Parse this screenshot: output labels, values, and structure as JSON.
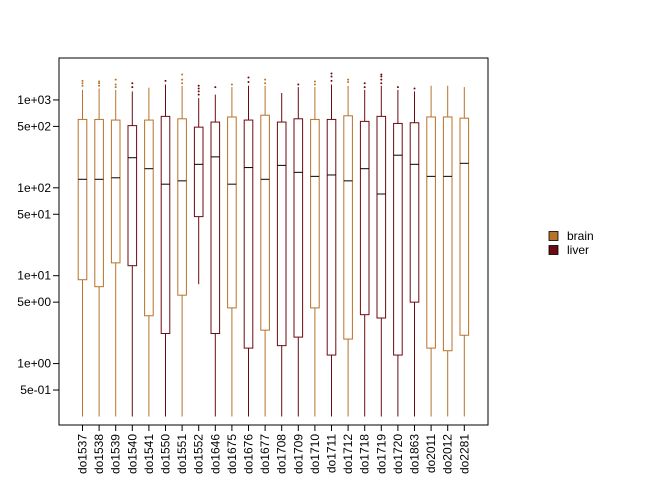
{
  "chart_data": {
    "type": "boxplot",
    "y_scale": "log10",
    "ylim": [
      0.2,
      3000
    ],
    "y_ticks": [
      {
        "value": 1000,
        "label": "1e+03"
      },
      {
        "value": 500,
        "label": "5e+02"
      },
      {
        "value": 100,
        "label": "1e+02"
      },
      {
        "value": 50,
        "label": "5e+01"
      },
      {
        "value": 10,
        "label": "1e+01"
      },
      {
        "value": 5,
        "label": "5e+00"
      },
      {
        "value": 1,
        "label": "1e+00"
      },
      {
        "value": 0.5,
        "label": "5e-01"
      }
    ],
    "legend": {
      "position": "right",
      "entries": [
        {
          "name": "brain",
          "color": "#b8722a"
        },
        {
          "name": "liver",
          "color": "#6b0a12"
        }
      ]
    },
    "boxes": [
      {
        "label": "do1537",
        "group": "brain",
        "min": 0.25,
        "q1": 9,
        "median": 125,
        "q3": 600,
        "max": 1300,
        "outliers": [
          1450,
          1550,
          1650
        ]
      },
      {
        "label": "do1538",
        "group": "brain",
        "min": 0.25,
        "q1": 7.5,
        "median": 125,
        "q3": 600,
        "max": 1350,
        "outliers": [
          1450,
          1550,
          1620
        ]
      },
      {
        "label": "do1539",
        "group": "brain",
        "min": 0.25,
        "q1": 14,
        "median": 130,
        "q3": 590,
        "max": 1300,
        "outliers": [
          1400,
          1500,
          1700
        ]
      },
      {
        "label": "do1540",
        "group": "liver",
        "min": 0.25,
        "q1": 13,
        "median": 220,
        "q3": 510,
        "max": 1250,
        "outliers": [
          1400,
          1550
        ]
      },
      {
        "label": "do1541",
        "group": "brain",
        "min": 0.25,
        "q1": 3.5,
        "median": 165,
        "q3": 590,
        "max": 1380,
        "outliers": []
      },
      {
        "label": "do1550",
        "group": "liver",
        "min": 0.25,
        "q1": 2.2,
        "median": 110,
        "q3": 650,
        "max": 1500,
        "outliers": [
          1650
        ]
      },
      {
        "label": "do1551",
        "group": "brain",
        "min": 0.25,
        "q1": 6,
        "median": 120,
        "q3": 610,
        "max": 1450,
        "outliers": [
          1550,
          1700,
          1950
        ]
      },
      {
        "label": "do1552",
        "group": "liver",
        "min": 8,
        "q1": 47,
        "median": 185,
        "q3": 490,
        "max": 1050,
        "outliers": [
          1150,
          1250,
          1350,
          1450
        ]
      },
      {
        "label": "do1646",
        "group": "liver",
        "min": 0.25,
        "q1": 2.2,
        "median": 225,
        "q3": 560,
        "max": 1150,
        "outliers": [
          1400
        ]
      },
      {
        "label": "do1675",
        "group": "brain",
        "min": 0.25,
        "q1": 4.3,
        "median": 110,
        "q3": 640,
        "max": 1400,
        "outliers": [
          1500
        ]
      },
      {
        "label": "do1676",
        "group": "liver",
        "min": 0.25,
        "q1": 1.5,
        "median": 170,
        "q3": 590,
        "max": 1450,
        "outliers": [
          1600,
          1800
        ]
      },
      {
        "label": "do1677",
        "group": "brain",
        "min": 0.25,
        "q1": 2.4,
        "median": 125,
        "q3": 670,
        "max": 1450,
        "outliers": [
          1550,
          1700
        ]
      },
      {
        "label": "do1708",
        "group": "liver",
        "min": 0.25,
        "q1": 1.6,
        "median": 180,
        "q3": 560,
        "max": 1200,
        "outliers": []
      },
      {
        "label": "do1709",
        "group": "liver",
        "min": 0.25,
        "q1": 2,
        "median": 150,
        "q3": 610,
        "max": 1400,
        "outliers": [
          1500
        ]
      },
      {
        "label": "do1710",
        "group": "brain",
        "min": 0.25,
        "q1": 4.3,
        "median": 135,
        "q3": 600,
        "max": 1400,
        "outliers": [
          1500,
          1620
        ]
      },
      {
        "label": "do1711",
        "group": "liver",
        "min": 0.25,
        "q1": 1.25,
        "median": 140,
        "q3": 600,
        "max": 1500,
        "outliers": [
          1650,
          1850,
          2000
        ]
      },
      {
        "label": "do1712",
        "group": "brain",
        "min": 0.25,
        "q1": 1.9,
        "median": 120,
        "q3": 660,
        "max": 1450,
        "outliers": [
          1600,
          1700
        ]
      },
      {
        "label": "do1718",
        "group": "liver",
        "min": 0.25,
        "q1": 3.6,
        "median": 165,
        "q3": 570,
        "max": 1300,
        "outliers": [
          1400,
          1550
        ]
      },
      {
        "label": "do1719",
        "group": "liver",
        "min": 0.25,
        "q1": 3.3,
        "median": 85,
        "q3": 650,
        "max": 1450,
        "outliers": [
          1550,
          1700,
          1850,
          1950
        ]
      },
      {
        "label": "do1720",
        "group": "liver",
        "min": 0.25,
        "q1": 1.25,
        "median": 235,
        "q3": 540,
        "max": 1300,
        "outliers": [
          1400
        ]
      },
      {
        "label": "do1863",
        "group": "liver",
        "min": 0.25,
        "q1": 5,
        "median": 185,
        "q3": 550,
        "max": 1250,
        "outliers": [
          1350
        ]
      },
      {
        "label": "do2011",
        "group": "brain",
        "min": 0.25,
        "q1": 1.5,
        "median": 135,
        "q3": 640,
        "max": 1450,
        "outliers": []
      },
      {
        "label": "do2012",
        "group": "brain",
        "min": 0.25,
        "q1": 1.4,
        "median": 135,
        "q3": 640,
        "max": 1450,
        "outliers": []
      },
      {
        "label": "do2281",
        "group": "brain",
        "min": 0.25,
        "q1": 2.1,
        "median": 190,
        "q3": 620,
        "max": 1400,
        "outliers": []
      }
    ]
  }
}
